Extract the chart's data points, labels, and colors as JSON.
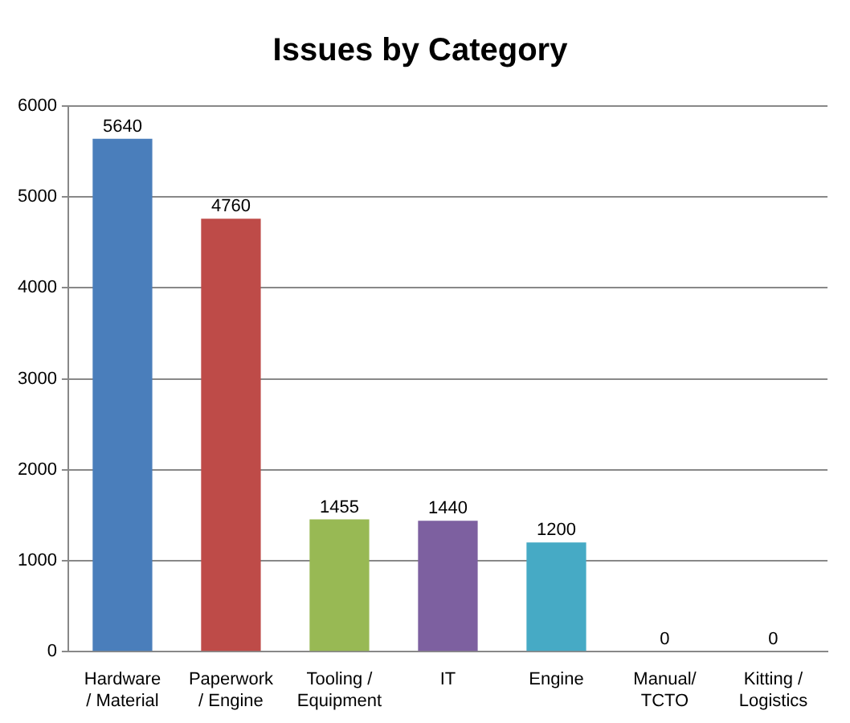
{
  "chart_data": {
    "type": "bar",
    "title": "Issues by Category",
    "categories": [
      "Hardware / Material",
      "Paperwork / Engine",
      "Tooling / Equipment",
      "IT",
      "Engine",
      "Manual/ TCTO",
      "Kitting / Logistics"
    ],
    "values": [
      5640,
      4760,
      1455,
      1440,
      1200,
      0,
      0
    ],
    "colors": [
      "#4a7ebb",
      "#be4b48",
      "#98b954",
      "#7d60a0",
      "#46aac5",
      "#f59d56",
      "#4a7ebb"
    ],
    "ylim": [
      0,
      6000
    ],
    "yticks": [
      0,
      1000,
      2000,
      3000,
      4000,
      5000,
      6000
    ],
    "grid": "y",
    "data_labels": true
  }
}
